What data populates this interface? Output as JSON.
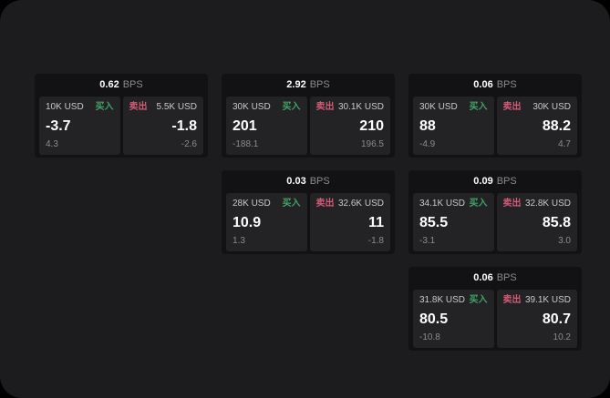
{
  "labels": {
    "bps_unit": "BPS",
    "buy": "买入",
    "sell": "卖出"
  },
  "colors": {
    "page_bg": "#1c1c1e",
    "card_bg": "#121214",
    "panel_bg": "#232326",
    "buy_green": "#42a266",
    "sell_red": "#d15a74"
  },
  "cards": [
    {
      "bps": "0.62",
      "buy": {
        "amount": "10K USD",
        "value": "-3.7",
        "sub": "4.3"
      },
      "sell": {
        "amount": "5.5K USD",
        "value": "-1.8",
        "sub": "-2.6"
      }
    },
    {
      "bps": "2.92",
      "buy": {
        "amount": "30K USD",
        "value": "201",
        "sub": "-188.1"
      },
      "sell": {
        "amount": "30.1K USD",
        "value": "210",
        "sub": "196.5"
      }
    },
    {
      "bps": "0.06",
      "buy": {
        "amount": "30K USD",
        "value": "88",
        "sub": "-4.9"
      },
      "sell": {
        "amount": "30K USD",
        "value": "88.2",
        "sub": "4.7"
      }
    },
    {
      "bps": "0.03",
      "buy": {
        "amount": "28K USD",
        "value": "10.9",
        "sub": "1.3"
      },
      "sell": {
        "amount": "32.6K USD",
        "value": "11",
        "sub": "-1.8"
      }
    },
    {
      "bps": "0.09",
      "buy": {
        "amount": "34.1K USD",
        "value": "85.5",
        "sub": "-3.1"
      },
      "sell": {
        "amount": "32.8K USD",
        "value": "85.8",
        "sub": "3.0"
      }
    },
    {
      "bps": "0.06",
      "buy": {
        "amount": "31.8K USD",
        "value": "80.5",
        "sub": "-10.8"
      },
      "sell": {
        "amount": "39.1K USD",
        "value": "80.7",
        "sub": "10.2"
      }
    }
  ]
}
